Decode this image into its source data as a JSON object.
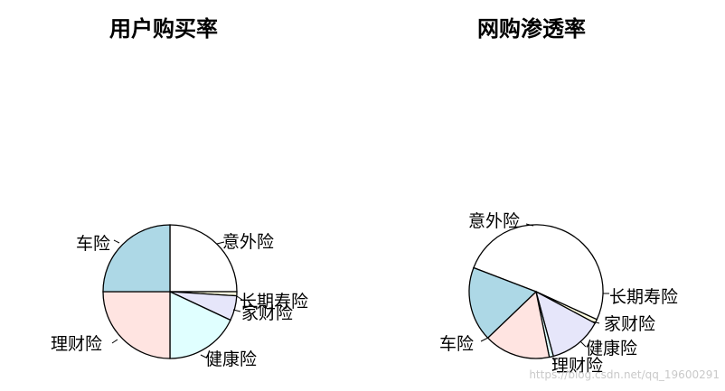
{
  "watermark": "https://blog.csdn.net/qq_19600291",
  "chart_data": [
    {
      "type": "pie",
      "title": "用户购买率",
      "slices": [
        {
          "label": "意外险",
          "value": 25.0,
          "color": "#ffffff"
        },
        {
          "label": "长期寿险",
          "value": 1.0,
          "color": "#ffffe0"
        },
        {
          "label": "家财险",
          "value": 6.0,
          "color": "#e6e6fa"
        },
        {
          "label": "健康险",
          "value": 18.0,
          "color": "#e0ffff"
        },
        {
          "label": "理财险",
          "value": 25.0,
          "color": "#ffe4e1"
        },
        {
          "label": "车险",
          "value": 25.0,
          "color": "#add8e6"
        }
      ],
      "start_angle_deg": 90,
      "direction": "clockwise"
    },
    {
      "type": "pie",
      "title": "网购渗透率",
      "slices": [
        {
          "label": "意外险",
          "value": 51.0,
          "color": "#ffffff"
        },
        {
          "label": "长期寿险",
          "value": 1.0,
          "color": "#ffffe0"
        },
        {
          "label": "家财险",
          "value": 13.0,
          "color": "#e6e6fa"
        },
        {
          "label": "健康险",
          "value": 1.0,
          "color": "#e0ffff"
        },
        {
          "label": "理财险",
          "value": 16.0,
          "color": "#ffe4e1"
        },
        {
          "label": "车险",
          "value": 18.0,
          "color": "#add8e6"
        }
      ],
      "start_angle_deg": 159,
      "direction": "clockwise"
    }
  ]
}
